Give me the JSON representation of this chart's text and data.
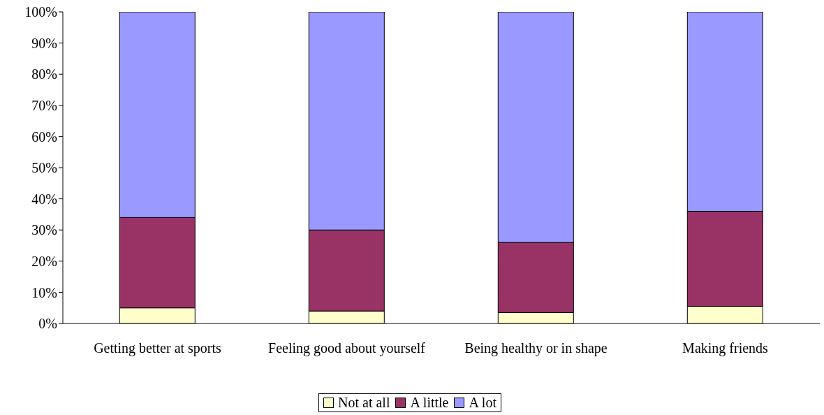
{
  "chart_data": {
    "type": "bar",
    "stacked": true,
    "categories": [
      "Getting better at sports",
      "Feeling good about yourself",
      "Being healthy or in shape",
      "Making friends"
    ],
    "series": [
      {
        "name": "Not at all",
        "color": "#ffffcc",
        "values": [
          5,
          4,
          3.5,
          5.5
        ]
      },
      {
        "name": "A little",
        "color": "#993366",
        "values": [
          29,
          26,
          22.5,
          30.5
        ]
      },
      {
        "name": "A lot",
        "color": "#9999ff",
        "values": [
          66,
          70,
          74,
          64
        ]
      }
    ],
    "ylim": [
      0,
      100
    ],
    "yticks": [
      {
        "value": 0,
        "label": "0%"
      },
      {
        "value": 10,
        "label": "10%"
      },
      {
        "value": 20,
        "label": "20%"
      },
      {
        "value": 30,
        "label": "30%"
      },
      {
        "value": 40,
        "label": "40%"
      },
      {
        "value": 50,
        "label": "50%"
      },
      {
        "value": 60,
        "label": "60%"
      },
      {
        "value": 70,
        "label": "70%"
      },
      {
        "value": 80,
        "label": "80%"
      },
      {
        "value": 90,
        "label": "90%"
      },
      {
        "value": 100,
        "label": "100%"
      }
    ],
    "grid": false,
    "legend": "bottom"
  }
}
